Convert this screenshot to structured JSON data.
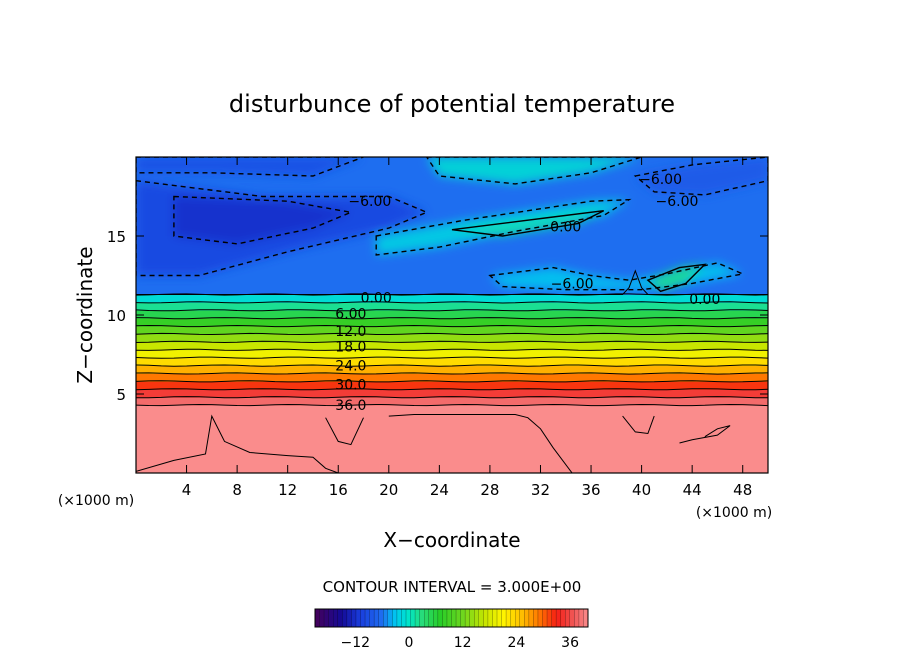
{
  "chart_data": {
    "type": "heatmap",
    "title": "disturbunce of potential temperature",
    "xlabel": "X−coordinate",
    "ylabel": "Z−coordinate",
    "x_unit": "(×1000 m)",
    "y_unit": "(×1000 m)",
    "xlim": [
      0,
      50
    ],
    "ylim": [
      0,
      20
    ],
    "xticks": [
      4,
      8,
      12,
      16,
      20,
      24,
      28,
      32,
      36,
      40,
      44,
      48
    ],
    "yticks": [
      5,
      10,
      15
    ],
    "contour_interval_label": "CONTOUR INTERVAL = 3.000E+00",
    "contour_interval": 3.0,
    "contour_labels": [
      {
        "text": "−6.00",
        "x": 18.5,
        "z": 17.2
      },
      {
        "text": "−6.00",
        "x": 41.5,
        "z": 18.6
      },
      {
        "text": "−6.00",
        "x": 42.8,
        "z": 17.2
      },
      {
        "text": "0.00",
        "x": 34.0,
        "z": 15.6
      },
      {
        "text": "−6.00",
        "x": 34.5,
        "z": 12.0
      },
      {
        "text": "0.00",
        "x": 19.0,
        "z": 11.1
      },
      {
        "text": "0.00",
        "x": 45.0,
        "z": 11.0
      },
      {
        "text": "6.00",
        "x": 17.0,
        "z": 10.1
      },
      {
        "text": "12.0",
        "x": 17.0,
        "z": 9.0
      },
      {
        "text": "18.0",
        "x": 17.0,
        "z": 8.0
      },
      {
        "text": "24.0",
        "x": 17.0,
        "z": 6.8
      },
      {
        "text": "30.0",
        "x": 17.0,
        "z": 5.6
      },
      {
        "text": "36.0",
        "x": 17.0,
        "z": 4.3
      }
    ],
    "bands": [
      {
        "z0": 0.0,
        "z1": 4.3,
        "value": 40
      },
      {
        "z0": 4.3,
        "z1": 4.8,
        "value": 38
      },
      {
        "z0": 4.8,
        "z1": 5.3,
        "value": 35
      },
      {
        "z0": 5.3,
        "z1": 5.8,
        "value": 32
      },
      {
        "z0": 5.8,
        "z1": 6.3,
        "value": 29
      },
      {
        "z0": 6.3,
        "z1": 6.8,
        "value": 26
      },
      {
        "z0": 6.8,
        "z1": 7.3,
        "value": 23
      },
      {
        "z0": 7.3,
        "z1": 7.8,
        "value": 20
      },
      {
        "z0": 7.8,
        "z1": 8.3,
        "value": 17
      },
      {
        "z0": 8.3,
        "z1": 8.8,
        "value": 14
      },
      {
        "z0": 8.8,
        "z1": 9.3,
        "value": 11
      },
      {
        "z0": 9.3,
        "z1": 9.8,
        "value": 8
      },
      {
        "z0": 9.8,
        "z1": 10.3,
        "value": 5
      },
      {
        "z0": 10.3,
        "z1": 10.8,
        "value": 2
      },
      {
        "z0": 10.8,
        "z1": 11.3,
        "value": -1
      },
      {
        "z0": 11.3,
        "z1": 20.0,
        "value": -6
      }
    ],
    "blobs": [
      {
        "points": [
          [
            0,
            18.5
          ],
          [
            10,
            17.5
          ],
          [
            20,
            17.5
          ],
          [
            23,
            16.5
          ],
          [
            20,
            15.5
          ],
          [
            12,
            14.0
          ],
          [
            5,
            12.5
          ],
          [
            0,
            12.5
          ]
        ],
        "value": -10
      },
      {
        "points": [
          [
            3,
            17.5
          ],
          [
            12,
            17.2
          ],
          [
            17,
            16.5
          ],
          [
            14,
            15.5
          ],
          [
            8,
            14.5
          ],
          [
            3,
            15
          ]
        ],
        "value": -12
      },
      {
        "points": [
          [
            0,
            20
          ],
          [
            18,
            20
          ],
          [
            14,
            18.8
          ],
          [
            6,
            19
          ],
          [
            0,
            19
          ]
        ],
        "value": -9
      },
      {
        "points": [
          [
            23,
            20
          ],
          [
            40,
            20
          ],
          [
            36,
            19
          ],
          [
            30,
            18.3
          ],
          [
            24,
            18.8
          ]
        ],
        "value": -1
      },
      {
        "points": [
          [
            19,
            15
          ],
          [
            26,
            16
          ],
          [
            31,
            16.6
          ],
          [
            36,
            17.2
          ],
          [
            39,
            17.3
          ],
          [
            37,
            16.3
          ],
          [
            30,
            15.3
          ],
          [
            24,
            14.3
          ],
          [
            19,
            13.8
          ]
        ],
        "value": -2
      },
      {
        "points": [
          [
            25,
            15.4
          ],
          [
            33,
            16.2
          ],
          [
            37,
            16.6
          ],
          [
            35,
            15.8
          ],
          [
            29,
            15.0
          ]
        ],
        "value": 1
      },
      {
        "points": [
          [
            28,
            12.5
          ],
          [
            33,
            13.0
          ],
          [
            36,
            12.5
          ],
          [
            39,
            12.2
          ],
          [
            42,
            12.6
          ],
          [
            46,
            13.3
          ],
          [
            48,
            12.6
          ],
          [
            44,
            12.0
          ],
          [
            40,
            11.6
          ],
          [
            34,
            11.6
          ],
          [
            29,
            11.8
          ]
        ],
        "value": -3
      },
      {
        "points": [
          [
            40.5,
            12.2
          ],
          [
            43,
            13.0
          ],
          [
            45,
            13.2
          ],
          [
            43.5,
            12.0
          ],
          [
            41.5,
            11.5
          ]
        ],
        "value": 2
      },
      {
        "points": [
          [
            39.5,
            18.8
          ],
          [
            44,
            19.5
          ],
          [
            50,
            20
          ],
          [
            50,
            18.5
          ],
          [
            45,
            17.6
          ],
          [
            41,
            17.8
          ]
        ],
        "value": -8
      }
    ],
    "lower_contours": [
      {
        "points": [
          [
            0,
            0.1
          ],
          [
            3,
            0.8
          ],
          [
            5.5,
            1.2
          ],
          [
            6,
            3.6
          ],
          [
            7,
            2.0
          ],
          [
            9,
            1.3
          ],
          [
            12,
            1.1
          ],
          [
            14,
            1.0
          ],
          [
            15,
            0.3
          ],
          [
            16,
            0
          ]
        ],
        "value": 39
      },
      {
        "points": [
          [
            15,
            3.5
          ],
          [
            16,
            2.0
          ],
          [
            17,
            1.8
          ],
          [
            18,
            3.5
          ]
        ],
        "value": 39
      },
      {
        "points": [
          [
            20,
            3.6
          ],
          [
            22,
            3.7
          ],
          [
            26,
            3.7
          ],
          [
            28,
            3.7
          ],
          [
            30,
            3.7
          ],
          [
            31,
            3.5
          ],
          [
            32,
            2.8
          ],
          [
            33,
            1.6
          ],
          [
            34.5,
            0
          ]
        ],
        "value": 39
      },
      {
        "points": [
          [
            38.5,
            3.6
          ],
          [
            39.5,
            2.6
          ],
          [
            40.5,
            2.5
          ],
          [
            41,
            3.6
          ]
        ],
        "value": 39
      },
      {
        "points": [
          [
            43,
            1.9
          ],
          [
            44,
            2.1
          ],
          [
            46,
            2.4
          ],
          [
            47,
            3.0
          ],
          [
            46,
            2.8
          ],
          [
            45,
            2.3
          ]
        ],
        "value": 39
      }
    ],
    "colorbar": {
      "ticks": [
        -12,
        0,
        12,
        24,
        36
      ],
      "min": -21,
      "max": 40
    }
  }
}
